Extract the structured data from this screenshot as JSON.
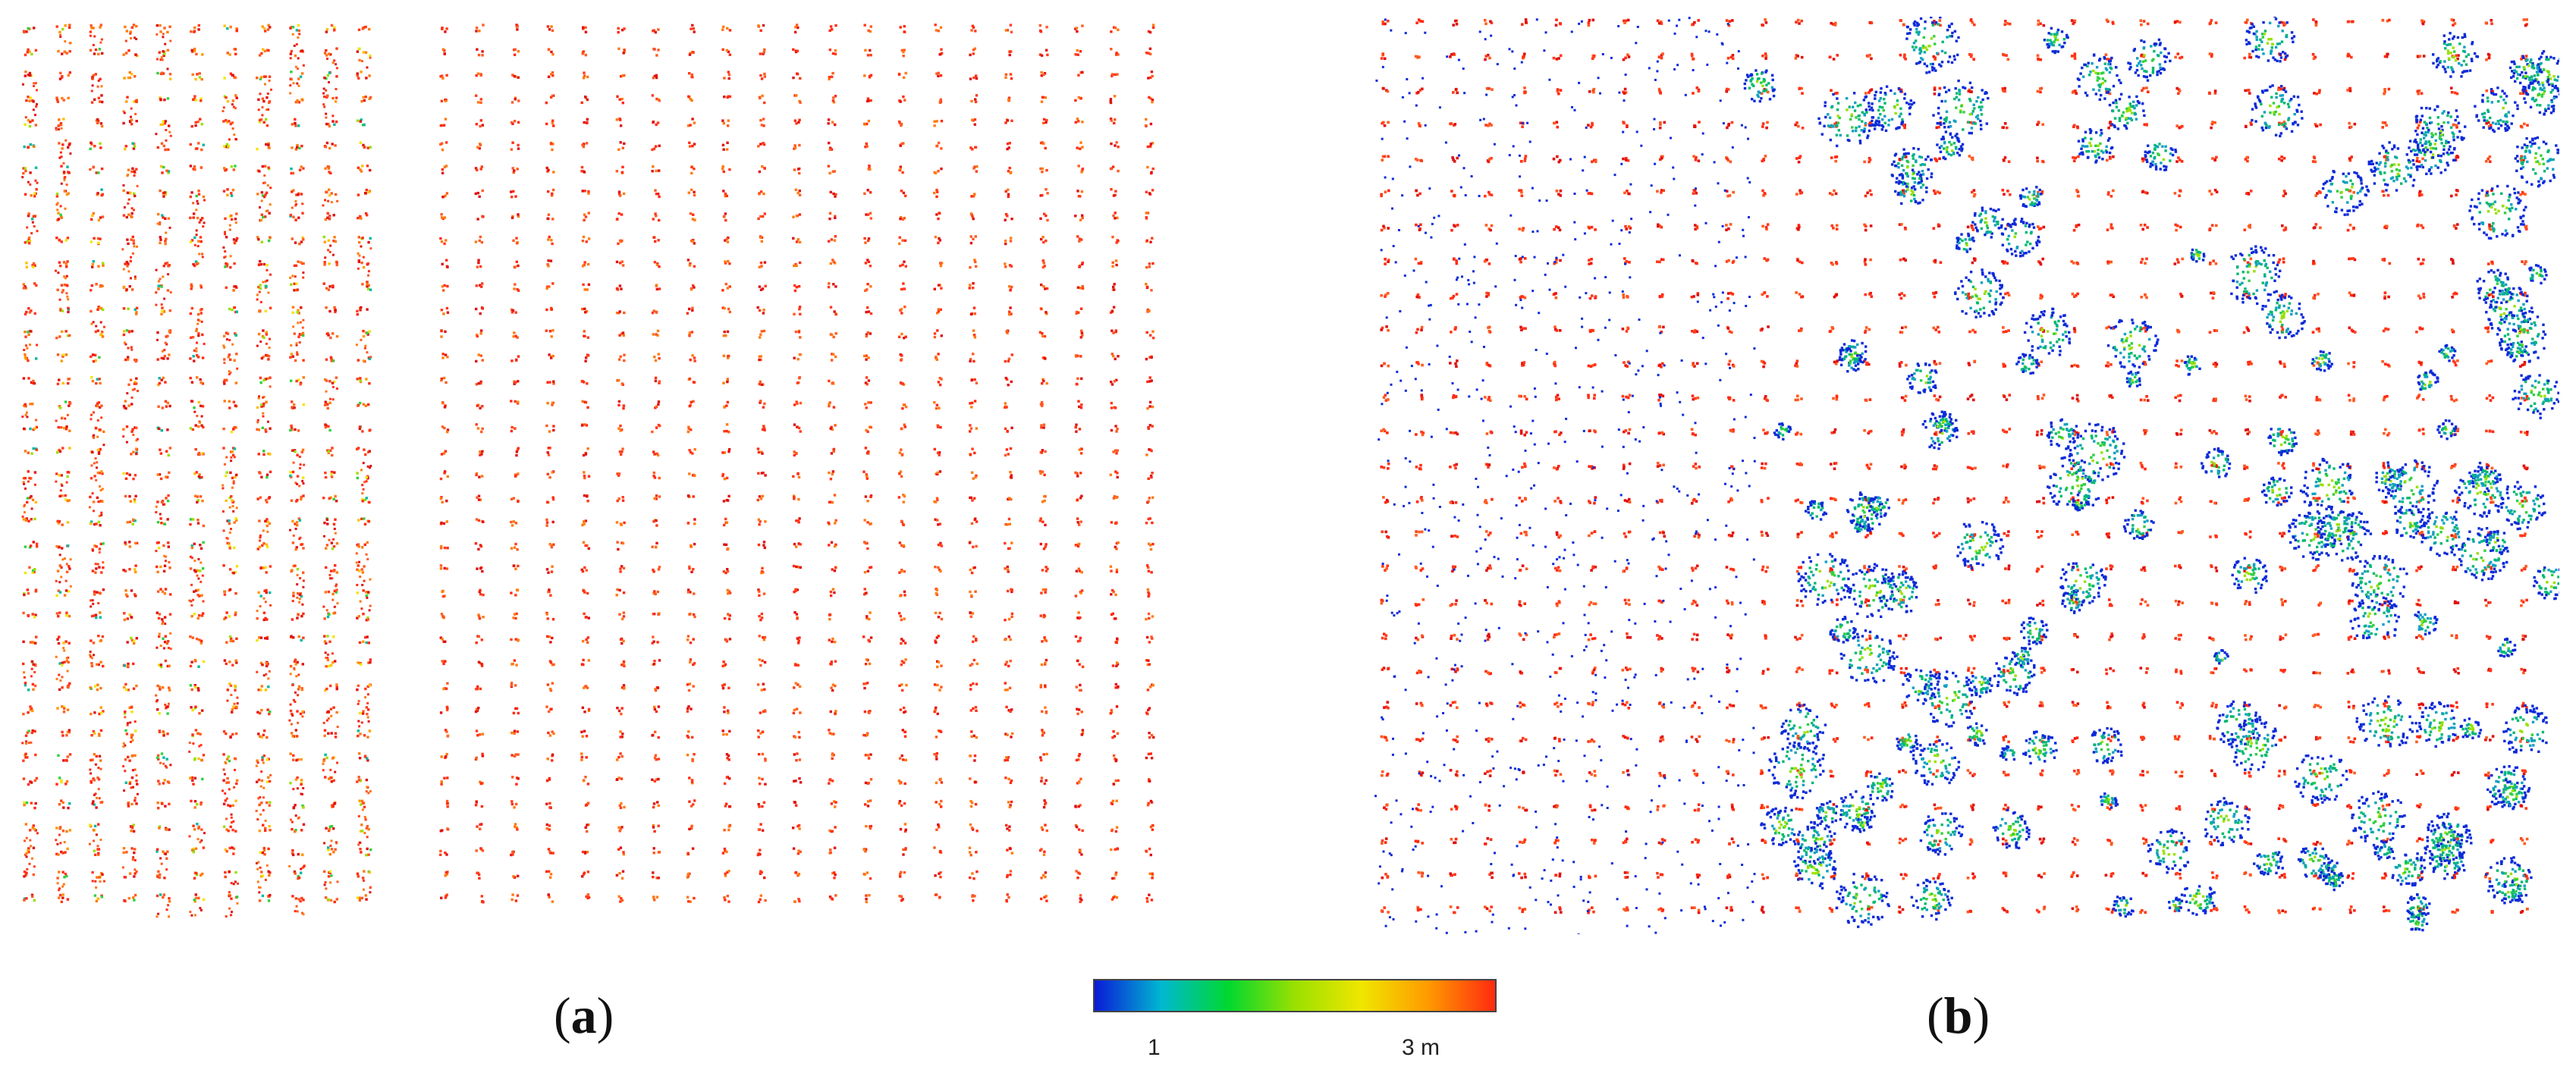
{
  "figure": {
    "panels": [
      {
        "id": "a",
        "letter": "a",
        "open": "(",
        "close": ")",
        "description_colors": [
          "red",
          "orange",
          "yellow",
          "green"
        ]
      },
      {
        "id": "b",
        "letter": "b",
        "open": "(",
        "close": ")",
        "description_colors": [
          "red",
          "green",
          "blue"
        ]
      }
    ],
    "colorbar": {
      "label_min": "1",
      "label_max": "3 m",
      "gradient": [
        "#0a1ad8",
        "#00b8d0",
        "#00d830",
        "#9ae000",
        "#f0e600",
        "#ff9a00",
        "#ff2a10"
      ]
    }
  }
}
